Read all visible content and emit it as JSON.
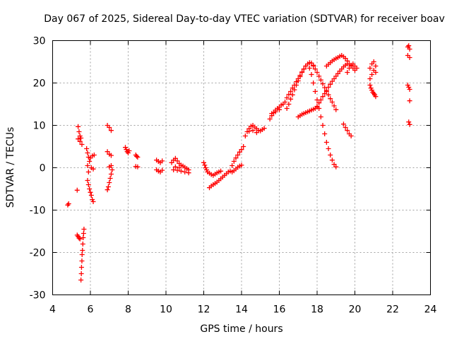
{
  "chart_data": {
    "type": "scatter",
    "title": "Day 067 of 2025, Sidereal Day-to-day VTEC variation (SDTVAR) for receiver boav",
    "xlabel": "GPS time / hours",
    "ylabel": "SDTVAR / TECUs",
    "xlim": [
      4,
      24
    ],
    "ylim": [
      -30,
      30
    ],
    "xticks": [
      4,
      6,
      8,
      10,
      12,
      14,
      16,
      18,
      20,
      22,
      24
    ],
    "yticks": [
      -30,
      -20,
      -10,
      0,
      10,
      20,
      30
    ],
    "grid": true,
    "marker": "+",
    "color": "#ff0000",
    "series": [
      {
        "name": "SDTVAR",
        "points": [
          [
            4.8,
            -8.8
          ],
          [
            4.85,
            -8.5
          ],
          [
            5.3,
            -5.3
          ],
          [
            5.3,
            -15.9
          ],
          [
            5.35,
            -16.2
          ],
          [
            5.4,
            -16.6
          ],
          [
            5.45,
            -16.8
          ],
          [
            5.35,
            9.7
          ],
          [
            5.4,
            8.5
          ],
          [
            5.45,
            7.5
          ],
          [
            5.35,
            6.8
          ],
          [
            5.45,
            6.2
          ],
          [
            5.5,
            7.0
          ],
          [
            5.55,
            5.5
          ],
          [
            5.5,
            -26.5
          ],
          [
            5.52,
            -25.0
          ],
          [
            5.53,
            -23.5
          ],
          [
            5.55,
            -22.0
          ],
          [
            5.56,
            -20.5
          ],
          [
            5.58,
            -19.5
          ],
          [
            5.6,
            -18.0
          ],
          [
            5.62,
            -16.5
          ],
          [
            5.64,
            -15.5
          ],
          [
            5.66,
            -14.5
          ],
          [
            5.8,
            4.5
          ],
          [
            5.85,
            3.5
          ],
          [
            5.9,
            2.5
          ],
          [
            5.95,
            1.5
          ],
          [
            5.85,
            0.5
          ],
          [
            5.9,
            -1.0
          ],
          [
            5.85,
            -3.0
          ],
          [
            5.9,
            -4.0
          ],
          [
            5.95,
            -5.0
          ],
          [
            6.0,
            -5.8
          ],
          [
            6.05,
            -6.5
          ],
          [
            6.1,
            -7.5
          ],
          [
            6.15,
            -8.0
          ],
          [
            6.0,
            2.3
          ],
          [
            6.1,
            2.8
          ],
          [
            6.2,
            3.0
          ],
          [
            6.05,
            0.0
          ],
          [
            6.15,
            -0.3
          ],
          [
            6.9,
            10.0
          ],
          [
            7.0,
            9.5
          ],
          [
            7.1,
            8.8
          ],
          [
            6.9,
            3.8
          ],
          [
            7.0,
            3.2
          ],
          [
            7.1,
            2.9
          ],
          [
            6.9,
            -5.2
          ],
          [
            6.95,
            -4.5
          ],
          [
            7.0,
            -3.5
          ],
          [
            7.05,
            -2.5
          ],
          [
            7.1,
            -1.5
          ],
          [
            7.15,
            -0.5
          ],
          [
            7.0,
            0.2
          ],
          [
            7.1,
            0.5
          ],
          [
            7.85,
            4.8
          ],
          [
            7.9,
            4.3
          ],
          [
            7.95,
            3.8
          ],
          [
            8.0,
            3.5
          ],
          [
            8.05,
            4.0
          ],
          [
            8.4,
            3.0
          ],
          [
            8.45,
            2.7
          ],
          [
            8.5,
            2.5
          ],
          [
            8.4,
            0.3
          ],
          [
            8.5,
            0.2
          ],
          [
            9.5,
            1.8
          ],
          [
            9.6,
            1.5
          ],
          [
            9.7,
            1.2
          ],
          [
            9.8,
            1.6
          ],
          [
            9.5,
            -0.5
          ],
          [
            9.6,
            -0.8
          ],
          [
            9.7,
            -1.0
          ],
          [
            9.8,
            -0.6
          ],
          [
            10.3,
            1.2
          ],
          [
            10.4,
            1.8
          ],
          [
            10.5,
            2.2
          ],
          [
            10.6,
            1.6
          ],
          [
            10.7,
            1.0
          ],
          [
            10.8,
            0.6
          ],
          [
            10.9,
            0.4
          ],
          [
            11.0,
            0.1
          ],
          [
            11.1,
            -0.2
          ],
          [
            11.2,
            -0.5
          ],
          [
            10.4,
            -0.5
          ],
          [
            10.6,
            -0.6
          ],
          [
            10.8,
            -0.8
          ],
          [
            11.0,
            -1.0
          ],
          [
            11.2,
            -1.2
          ],
          [
            10.5,
            0.2
          ],
          [
            10.7,
            0.0
          ],
          [
            12.0,
            1.2
          ],
          [
            12.05,
            0.6
          ],
          [
            12.1,
            0.0
          ],
          [
            12.15,
            -0.5
          ],
          [
            12.2,
            -1.0
          ],
          [
            12.3,
            -1.3
          ],
          [
            12.4,
            -1.6
          ],
          [
            12.5,
            -1.8
          ],
          [
            12.6,
            -1.5
          ],
          [
            12.7,
            -1.2
          ],
          [
            12.8,
            -1.0
          ],
          [
            12.9,
            -0.8
          ],
          [
            12.3,
            -4.7
          ],
          [
            12.4,
            -4.3
          ],
          [
            12.5,
            -4.0
          ],
          [
            12.6,
            -3.7
          ],
          [
            12.7,
            -3.4
          ],
          [
            12.8,
            -3.0
          ],
          [
            12.9,
            -2.6
          ],
          [
            13.0,
            -2.2
          ],
          [
            13.1,
            -1.8
          ],
          [
            13.2,
            -1.4
          ],
          [
            13.3,
            -1.0
          ],
          [
            13.4,
            -0.8
          ],
          [
            13.5,
            -1.0
          ],
          [
            13.6,
            -0.7
          ],
          [
            13.7,
            -0.3
          ],
          [
            13.8,
            0.1
          ],
          [
            13.9,
            0.4
          ],
          [
            14.0,
            0.6
          ],
          [
            13.5,
            0.5
          ],
          [
            13.6,
            1.5
          ],
          [
            13.7,
            2.3
          ],
          [
            13.8,
            3.0
          ],
          [
            13.9,
            3.7
          ],
          [
            14.0,
            4.3
          ],
          [
            14.1,
            5.0
          ],
          [
            14.2,
            7.5
          ],
          [
            14.3,
            8.5
          ],
          [
            14.4,
            9.2
          ],
          [
            14.5,
            9.8
          ],
          [
            14.6,
            10.0
          ],
          [
            14.7,
            9.6
          ],
          [
            14.8,
            9.2
          ],
          [
            14.9,
            8.8
          ],
          [
            15.0,
            8.7
          ],
          [
            15.1,
            9.0
          ],
          [
            15.2,
            9.3
          ],
          [
            14.4,
            8.6
          ],
          [
            14.6,
            8.8
          ],
          [
            14.8,
            8.3
          ],
          [
            15.5,
            11.5
          ],
          [
            15.6,
            12.3
          ],
          [
            15.7,
            13.0
          ],
          [
            15.8,
            13.6
          ],
          [
            15.9,
            14.0
          ],
          [
            16.0,
            14.3
          ],
          [
            16.1,
            14.8
          ],
          [
            16.2,
            15.0
          ],
          [
            15.6,
            12.8
          ],
          [
            15.8,
            13.2
          ],
          [
            16.0,
            13.7
          ],
          [
            16.3,
            15.5
          ],
          [
            16.4,
            16.5
          ],
          [
            16.5,
            17.3
          ],
          [
            16.6,
            18.0
          ],
          [
            16.7,
            18.8
          ],
          [
            16.8,
            19.5
          ],
          [
            16.9,
            20.3
          ],
          [
            17.0,
            21.0
          ],
          [
            17.1,
            21.8
          ],
          [
            17.2,
            22.6
          ],
          [
            17.3,
            23.3
          ],
          [
            17.4,
            24.0
          ],
          [
            17.5,
            24.5
          ],
          [
            17.6,
            24.8
          ],
          [
            17.7,
            24.7
          ],
          [
            17.8,
            24.2
          ],
          [
            16.4,
            14.0
          ],
          [
            16.5,
            15.0
          ],
          [
            16.6,
            16.2
          ],
          [
            16.7,
            17.2
          ],
          [
            16.8,
            18.4
          ],
          [
            16.9,
            19.5
          ],
          [
            17.0,
            20.5
          ],
          [
            17.1,
            21.5
          ],
          [
            17.2,
            22.5
          ],
          [
            17.3,
            23.3
          ],
          [
            17.4,
            24.0
          ],
          [
            17.8,
            24.0
          ],
          [
            17.9,
            23.3
          ],
          [
            18.0,
            22.5
          ],
          [
            18.1,
            21.6
          ],
          [
            18.2,
            20.7
          ],
          [
            18.3,
            19.8
          ],
          [
            18.4,
            18.9
          ],
          [
            18.5,
            18.0
          ],
          [
            18.6,
            17.2
          ],
          [
            18.7,
            16.3
          ],
          [
            18.8,
            15.5
          ],
          [
            18.9,
            14.6
          ],
          [
            19.0,
            13.7
          ],
          [
            17.6,
            23.5
          ],
          [
            17.7,
            22.0
          ],
          [
            17.8,
            20.0
          ],
          [
            17.9,
            18.0
          ],
          [
            18.0,
            16.0
          ],
          [
            18.1,
            14.0
          ],
          [
            18.2,
            12.0
          ],
          [
            18.3,
            10.0
          ],
          [
            18.4,
            8.0
          ],
          [
            18.5,
            6.0
          ],
          [
            18.6,
            4.5
          ],
          [
            18.7,
            3.0
          ],
          [
            18.8,
            1.8
          ],
          [
            18.9,
            0.8
          ],
          [
            19.0,
            0.2
          ],
          [
            17.0,
            12.0
          ],
          [
            17.1,
            12.3
          ],
          [
            17.2,
            12.6
          ],
          [
            17.3,
            12.8
          ],
          [
            17.4,
            13.0
          ],
          [
            17.5,
            13.2
          ],
          [
            17.6,
            13.4
          ],
          [
            17.7,
            13.6
          ],
          [
            17.8,
            13.8
          ],
          [
            17.9,
            14.0
          ],
          [
            18.0,
            14.3
          ],
          [
            18.0,
            14.5
          ],
          [
            18.1,
            15.3
          ],
          [
            18.2,
            16.0
          ],
          [
            18.3,
            16.8
          ],
          [
            18.4,
            17.5
          ],
          [
            18.5,
            18.2
          ],
          [
            18.6,
            19.0
          ],
          [
            18.7,
            19.7
          ],
          [
            18.8,
            20.4
          ],
          [
            18.9,
            21.0
          ],
          [
            19.0,
            21.6
          ],
          [
            19.1,
            22.2
          ],
          [
            19.2,
            22.8
          ],
          [
            19.3,
            23.3
          ],
          [
            19.4,
            23.8
          ],
          [
            19.5,
            24.2
          ],
          [
            19.6,
            24.5
          ],
          [
            18.5,
            24.0
          ],
          [
            18.6,
            24.4
          ],
          [
            18.7,
            24.8
          ],
          [
            18.8,
            25.2
          ],
          [
            18.9,
            25.5
          ],
          [
            19.0,
            25.8
          ],
          [
            19.1,
            26.0
          ],
          [
            19.2,
            26.3
          ],
          [
            19.3,
            26.5
          ],
          [
            19.4,
            26.2
          ],
          [
            19.5,
            25.8
          ],
          [
            19.6,
            25.2
          ],
          [
            19.7,
            24.5
          ],
          [
            19.8,
            24.0
          ],
          [
            19.9,
            23.5
          ],
          [
            20.0,
            23.0
          ],
          [
            19.6,
            22.5
          ],
          [
            19.7,
            23.5
          ],
          [
            19.8,
            24.2
          ],
          [
            19.9,
            24.5
          ],
          [
            20.0,
            24.0
          ],
          [
            20.1,
            23.5
          ],
          [
            19.4,
            10.3
          ],
          [
            19.5,
            9.5
          ],
          [
            19.6,
            8.8
          ],
          [
            19.7,
            8.0
          ],
          [
            19.8,
            7.5
          ],
          [
            20.8,
            21.0
          ],
          [
            20.9,
            22.0
          ],
          [
            21.0,
            23.0
          ],
          [
            21.1,
            24.0
          ],
          [
            21.0,
            25.0
          ],
          [
            20.9,
            24.5
          ],
          [
            20.8,
            23.5
          ],
          [
            21.1,
            22.5
          ],
          [
            20.8,
            19.5
          ],
          [
            20.85,
            18.8
          ],
          [
            20.9,
            18.3
          ],
          [
            20.95,
            17.8
          ],
          [
            21.0,
            17.5
          ],
          [
            21.05,
            17.2
          ],
          [
            21.1,
            16.8
          ],
          [
            22.8,
            28.5
          ],
          [
            22.85,
            28.8
          ],
          [
            22.9,
            28.0
          ],
          [
            22.8,
            26.5
          ],
          [
            22.9,
            26.0
          ],
          [
            22.8,
            19.5
          ],
          [
            22.85,
            19.0
          ],
          [
            22.9,
            18.5
          ],
          [
            22.9,
            15.8
          ],
          [
            22.85,
            10.8
          ],
          [
            22.9,
            10.2
          ]
        ]
      }
    ]
  }
}
